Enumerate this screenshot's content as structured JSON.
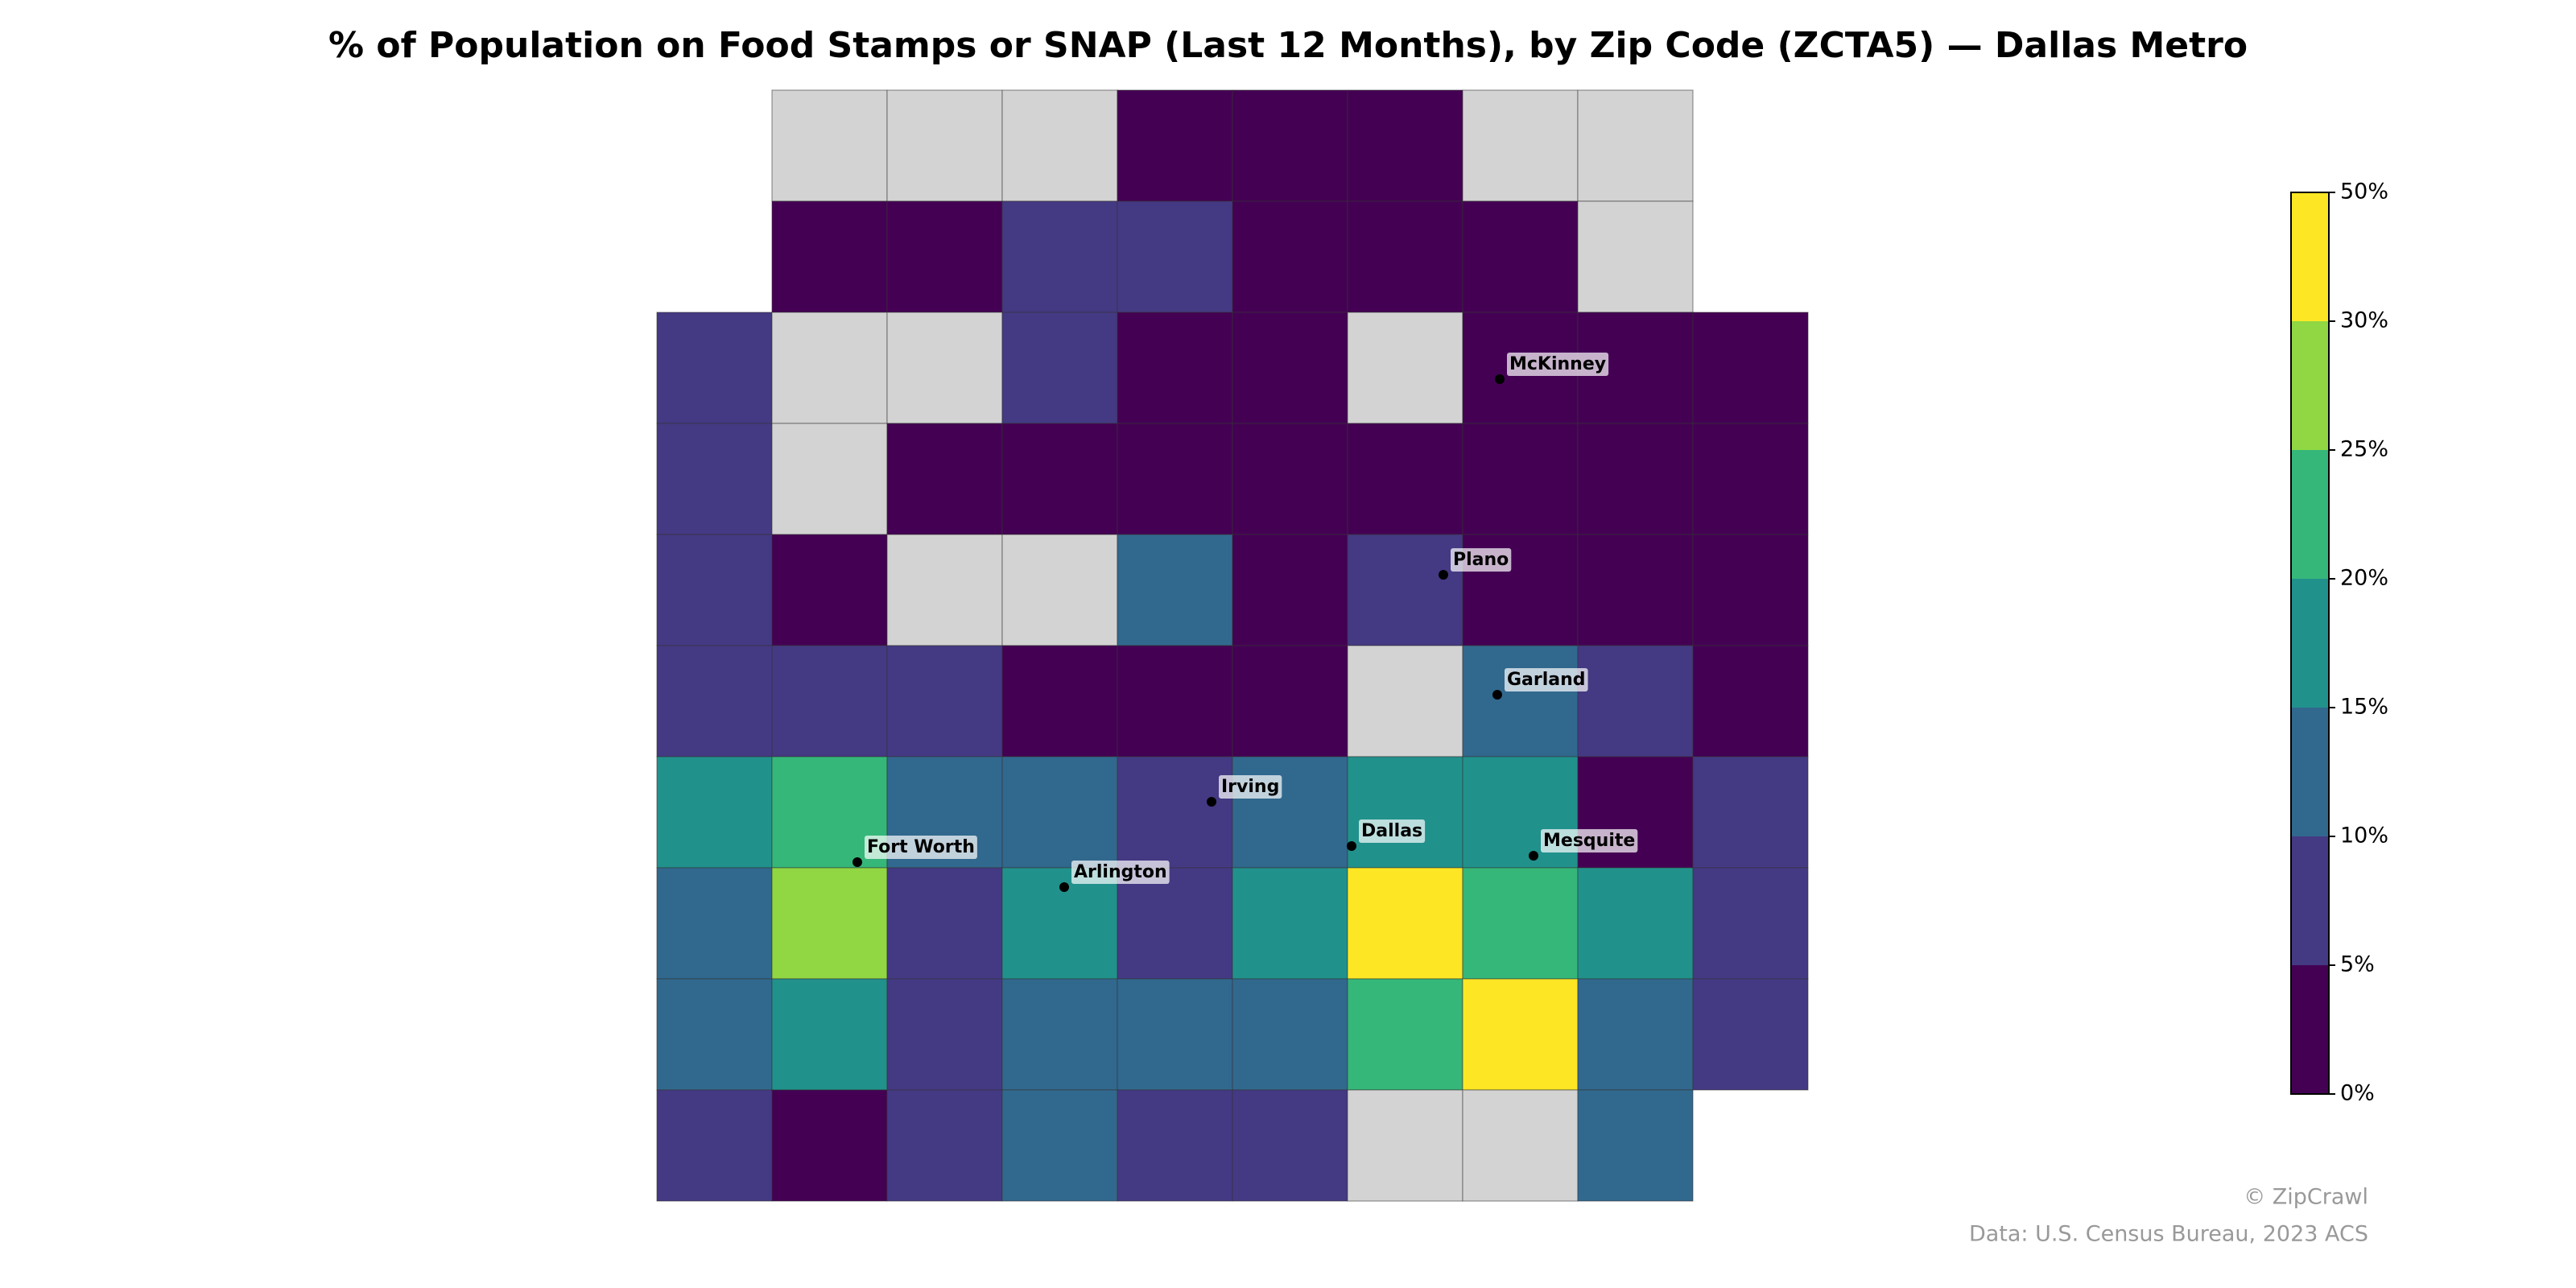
{
  "chart_data": {
    "type": "choropleth",
    "title": "% of Population on Food Stamps or SNAP (Last 12 Months), by Zip Code (ZCTA5) — Dallas Metro",
    "zip_values": [
      null,
      null,
      null,
      2,
      2,
      2,
      null,
      null,
      2,
      2,
      7,
      7,
      2,
      2,
      2,
      null,
      7,
      null,
      null,
      7,
      2,
      2,
      null,
      2,
      2,
      2,
      7,
      null,
      2,
      2,
      2,
      2,
      2,
      2,
      2,
      2,
      7,
      2,
      null,
      null,
      12,
      2,
      7,
      2,
      2,
      2,
      7,
      7,
      7,
      2,
      2,
      2,
      null,
      12,
      7,
      2,
      17,
      22,
      12,
      12,
      7,
      12,
      17,
      17,
      2,
      7,
      12,
      27,
      7,
      17,
      7,
      17,
      40,
      22,
      17,
      7,
      12,
      17,
      7,
      12,
      12,
      12,
      22,
      40,
      12,
      7,
      7,
      2,
      7,
      12,
      7,
      7,
      null,
      null,
      12
    ],
    "no_data_color": "#d3d3d3",
    "colorbar": {
      "colors": [
        "#440154",
        "#443983",
        "#31688e",
        "#21918c",
        "#35b779",
        "#90d743",
        "#fde725"
      ],
      "ticks": [
        {
          "value": 0,
          "label": "0%"
        },
        {
          "value": 5,
          "label": "5%"
        },
        {
          "value": 10,
          "label": "10%"
        },
        {
          "value": 15,
          "label": "15%"
        },
        {
          "value": 20,
          "label": "20%"
        },
        {
          "value": 25,
          "label": "25%"
        },
        {
          "value": 30,
          "label": "30%"
        },
        {
          "value": 50,
          "label": "50%"
        }
      ]
    },
    "cities": [
      "McKinney",
      "Plano",
      "Garland",
      "Irving",
      "Dallas",
      "Mesquite",
      "Fort Worth",
      "Arlington"
    ],
    "credits": [
      "© ZipCrawl",
      "Data: U.S. Census Bureau, 2023 ACS"
    ]
  }
}
